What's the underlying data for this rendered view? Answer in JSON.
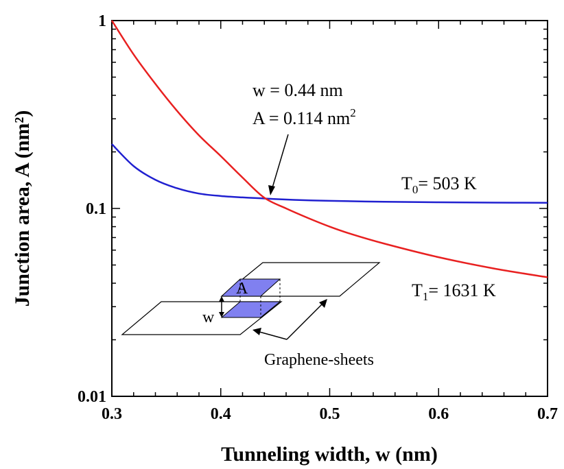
{
  "chart_data": {
    "type": "line",
    "xlabel": "Tunneling width, w (nm)",
    "ylabel": "Junction area, A (nm²)",
    "xlim": [
      0.3,
      0.7
    ],
    "ylim": [
      0.01,
      1
    ],
    "yscale": "log",
    "grid": false,
    "x_ticks": [
      "0.3",
      "0.4",
      "0.5",
      "0.6",
      "0.7"
    ],
    "y_ticks": [
      "0.01",
      "0.1",
      "1"
    ],
    "series": [
      {
        "name": "T0= 503 K",
        "color": "#2020d0",
        "x": [
          0.3,
          0.32,
          0.34,
          0.36,
          0.38,
          0.4,
          0.42,
          0.44,
          0.46,
          0.48,
          0.5,
          0.55,
          0.6,
          0.65,
          0.7
        ],
        "y": [
          0.22,
          0.168,
          0.142,
          0.128,
          0.12,
          0.1165,
          0.1145,
          0.113,
          0.1115,
          0.1105,
          0.1098,
          0.1085,
          0.1078,
          0.1074,
          0.1072
        ]
      },
      {
        "name": "T1= 1631 K",
        "color": "#e82020",
        "x": [
          0.3,
          0.32,
          0.34,
          0.36,
          0.38,
          0.4,
          0.42,
          0.44,
          0.46,
          0.48,
          0.5,
          0.52,
          0.55,
          0.6,
          0.65,
          0.7
        ],
        "y": [
          1.0,
          0.66,
          0.46,
          0.33,
          0.245,
          0.19,
          0.146,
          0.114,
          0.1,
          0.089,
          0.08,
          0.073,
          0.065,
          0.055,
          0.048,
          0.043
        ]
      }
    ],
    "annotations": {
      "intersection_w": "w = 0.44 nm",
      "intersection_A": "A = 0.114 nm",
      "intersection_A_sup": "2",
      "t0_label": "T",
      "t0_sub": "0",
      "t0_value": "= 503 K",
      "t1_label": "T",
      "t1_sub": "1",
      "t1_value": "= 1631 K",
      "inset_area_label": "A",
      "inset_width_label": "w",
      "inset_caption": "Graphene-sheets"
    }
  }
}
